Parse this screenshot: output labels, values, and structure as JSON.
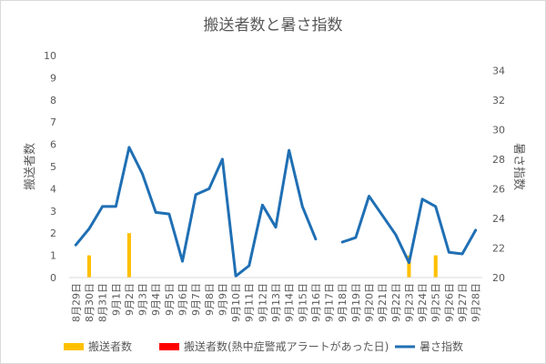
{
  "chart_data": {
    "type": "bar+line",
    "title": "搬送者数と暑さ指数",
    "ylabel_left": "搬送者数",
    "ylabel_right": "暑さ指数",
    "ylim_left": [
      0,
      10
    ],
    "yticks_left": [
      0,
      1,
      2,
      3,
      4,
      5,
      6,
      7,
      8,
      9,
      10
    ],
    "ylim_right": [
      20,
      35
    ],
    "yticks_right": [
      20,
      22,
      24,
      26,
      28,
      30,
      32,
      34
    ],
    "grid": false,
    "legend_position": "bottom",
    "categories": [
      "8月29日",
      "8月30日",
      "8月31日",
      "9月1日",
      "9月2日",
      "9月3日",
      "9月4日",
      "9月5日",
      "9月6日",
      "9月7日",
      "9月8日",
      "9月9日",
      "9月10日",
      "9月11日",
      "9月12日",
      "9月13日",
      "9月14日",
      "9月15日",
      "9月16日",
      "9月17日",
      "9月18日",
      "9月19日",
      "9月20日",
      "9月21日",
      "9月22日",
      "9月23日",
      "9月24日",
      "9月25日",
      "9月26日",
      "9月27日",
      "9月28日"
    ],
    "series": [
      {
        "name": "搬送者数",
        "kind": "bar",
        "axis": "left",
        "color": "#ffc000",
        "values": [
          0,
          1,
          0,
          0,
          2,
          0,
          0,
          0,
          0,
          0,
          0,
          0,
          0,
          0,
          0,
          0,
          0,
          0,
          0,
          0,
          0,
          0,
          0,
          0,
          0,
          1,
          0,
          1,
          0,
          0,
          0
        ]
      },
      {
        "name": "搬送者数(熱中症警戒アラートがあった日)",
        "kind": "bar",
        "axis": "left",
        "color": "#ff0000",
        "values": [
          0,
          0,
          0,
          0,
          0,
          0,
          0,
          0,
          0,
          0,
          0,
          0,
          0,
          0,
          0,
          0,
          0,
          0,
          0,
          0,
          0,
          0,
          0,
          0,
          0,
          0,
          0,
          0,
          0,
          0,
          0
        ]
      },
      {
        "name": "暑さ指数",
        "kind": "line",
        "axis": "right",
        "color": "#1f6fb4",
        "values": [
          22.2,
          23.3,
          24.8,
          24.8,
          28.8,
          27.0,
          24.4,
          24.3,
          21.1,
          25.6,
          26.0,
          28.0,
          20.1,
          20.8,
          24.9,
          23.4,
          28.6,
          24.8,
          22.6,
          null,
          22.4,
          22.7,
          25.5,
          24.2,
          22.9,
          21.0,
          25.3,
          24.8,
          21.7,
          21.6,
          23.2
        ]
      }
    ]
  }
}
